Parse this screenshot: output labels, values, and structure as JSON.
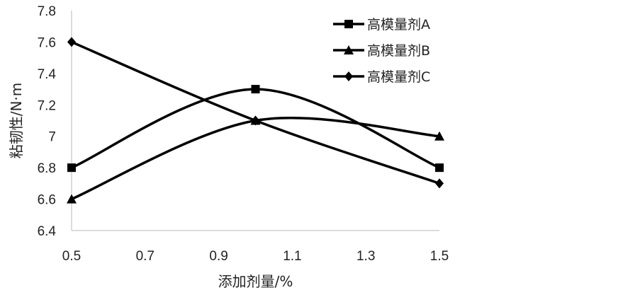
{
  "chart_data": {
    "type": "line",
    "xlabel": "添加剂量/%",
    "ylabel": "粘韧性/N·m",
    "xlim": [
      0.5,
      1.5
    ],
    "ylim": [
      6.4,
      7.8
    ],
    "x_ticks": [
      "0.5",
      "0.7",
      "0.9",
      "1.1",
      "1.3",
      "1.5"
    ],
    "y_ticks": [
      "6.4",
      "6.6",
      "6.8",
      "7",
      "7.2",
      "7.4",
      "7.6",
      "7.8"
    ],
    "grid": false,
    "smooth": true,
    "legend_position": "top-right",
    "series": [
      {
        "name": "高模量剂A",
        "marker": "square",
        "x": [
          0.5,
          1.0,
          1.5
        ],
        "y": [
          6.8,
          7.3,
          6.8
        ]
      },
      {
        "name": "高模量剂B",
        "marker": "triangle",
        "x": [
          0.5,
          1.0,
          1.5
        ],
        "y": [
          6.6,
          7.1,
          7.0
        ]
      },
      {
        "name": "高模量剂C",
        "marker": "diamond",
        "x": [
          0.5,
          1.0,
          1.5
        ],
        "y": [
          7.6,
          7.1,
          6.7
        ]
      }
    ],
    "line_color": "#000000"
  }
}
